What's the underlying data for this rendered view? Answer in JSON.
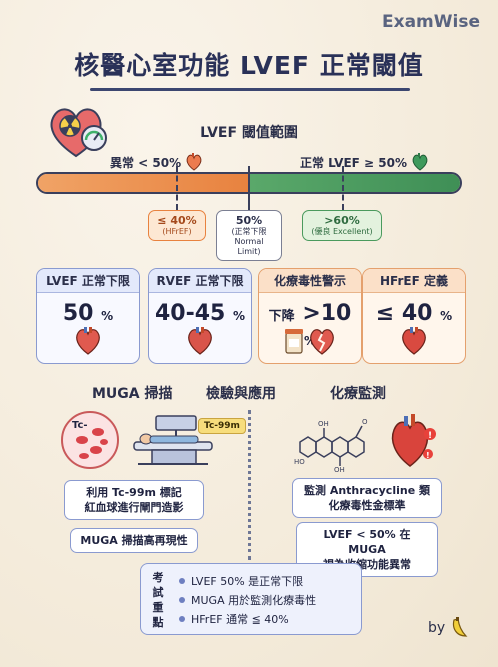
{
  "brand": "ExamWise",
  "title": "核醫心室功能 LVEF 正常閾值",
  "range": {
    "title": "LVEF 閾值範圍",
    "abnormal_label": "異常 < 50%",
    "normal_label": "正常 LVEF ≥ 50%",
    "markers": [
      {
        "value": "≤ 40%",
        "sub": "(HFrEF)"
      },
      {
        "value": "50%",
        "sub": "(正常下限 Normal Limit)"
      },
      {
        "value": ">60%",
        "sub": "(優良 Excellent)"
      }
    ]
  },
  "cards": [
    {
      "title": "LVEF 正常下限",
      "value": "50",
      "unit": "%"
    },
    {
      "title": "RVEF 正常下限",
      "value": "40-45",
      "unit": "%"
    },
    {
      "title": "化療毒性警示",
      "pre": "下降",
      "value": ">10",
      "unit": "%"
    },
    {
      "title": "HFrEF 定義",
      "value": "≤ 40",
      "unit": "%"
    }
  ],
  "section_center": "檢驗與應用",
  "muga": {
    "title": "MUGA 掃描",
    "rbc_label": "Tc-",
    "tag": "Tc-99m",
    "box1_line1": "利用 Tc-99m 標記",
    "box1_line2": "紅血球進行閘門造影",
    "box2": "MUGA 掃描高再現性"
  },
  "chemo": {
    "title": "化療監測",
    "box1_line1": "監測 Anthracycline 類",
    "box1_line2": "化療毒性金標準",
    "box2_line1": "LVEF < 50% 在 MUGA",
    "box2_line2": "視為收縮功能異常"
  },
  "summary": {
    "label": [
      "考",
      "試",
      "重",
      "點"
    ],
    "items": [
      "LVEF 50% 是正常下限",
      "MUGA 用於監測化療毒性",
      "HFrEF 通常 ≦ 40%"
    ]
  },
  "byline": "by"
}
